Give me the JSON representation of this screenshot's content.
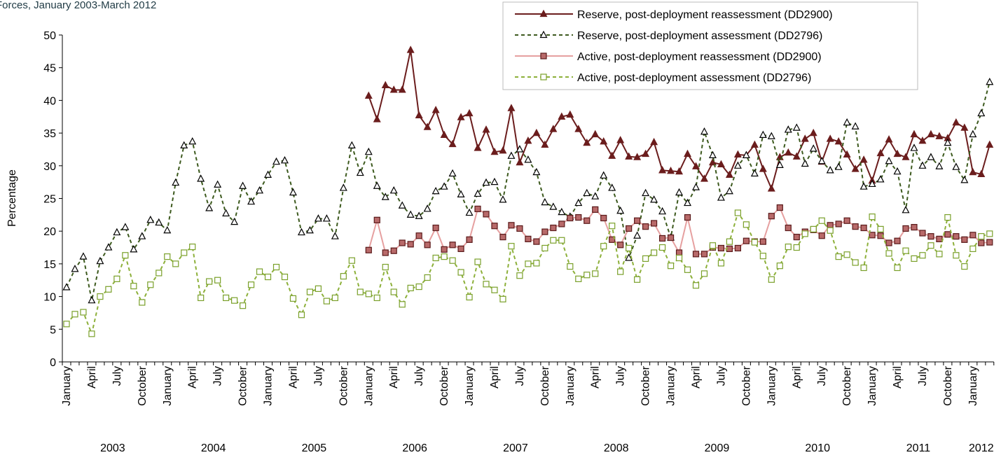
{
  "chart_data": {
    "type": "line",
    "title": "Forces, January 2003-March 2012",
    "y_label": "Percentage",
    "categories": [
      "January",
      null,
      null,
      "April",
      null,
      null,
      "July",
      null,
      null,
      "October",
      null,
      null,
      "January",
      null,
      null,
      "April",
      null,
      null,
      "July",
      null,
      null,
      "October",
      null,
      null,
      "January",
      null,
      null,
      "April",
      null,
      null,
      "July",
      null,
      null,
      "October",
      null,
      null,
      "January",
      null,
      null,
      "April",
      null,
      null,
      "July",
      null,
      null,
      "October",
      null,
      null,
      "January",
      null,
      null,
      "April",
      null,
      null,
      "July",
      null,
      null,
      "October",
      null,
      null,
      "January",
      null,
      null,
      "April",
      null,
      null,
      "July",
      null,
      null,
      "October",
      null,
      null,
      "January",
      null,
      null,
      "April",
      null,
      null,
      "July",
      null,
      null,
      "October",
      null,
      null,
      "January",
      null,
      null,
      "April",
      null,
      null,
      "July",
      null,
      null,
      "October",
      null,
      null,
      "January",
      null,
      null,
      "April",
      null,
      null,
      "July",
      null,
      null,
      "October",
      null,
      null,
      "January",
      null,
      null
    ],
    "years": [
      "2003",
      "2004",
      "2005",
      "2006",
      "2007",
      "2008",
      "2009",
      "2010",
      "2011",
      "2012"
    ],
    "ylim": [
      0,
      50
    ],
    "yticks": [
      0,
      5,
      10,
      15,
      20,
      25,
      30,
      35,
      40,
      45,
      50
    ],
    "series": [
      {
        "name": "Reserve, post-deployment reassessment (DD2900)",
        "color": "#6b1d1d",
        "dash": false,
        "marker": "triangle",
        "marker_fill": "#6b1d1d",
        "marker_stroke": "#6b1d1d",
        "values": [
          null,
          null,
          null,
          null,
          null,
          null,
          null,
          null,
          null,
          null,
          null,
          null,
          null,
          null,
          null,
          null,
          null,
          null,
          null,
          null,
          null,
          null,
          null,
          null,
          null,
          null,
          null,
          null,
          null,
          null,
          null,
          null,
          null,
          null,
          null,
          null,
          40.7,
          37.1,
          42.3,
          41.6,
          41.6,
          47.7,
          37.7,
          35.9,
          38.5,
          34.7,
          33.3,
          37.4,
          38.0,
          32.7,
          35.5,
          32.1,
          32.3,
          38.8,
          30.5,
          33.8,
          35.0,
          33.2,
          35.6,
          37.5,
          37.8,
          35.6,
          33.5,
          34.8,
          33.7,
          31.5,
          33.9,
          31.4,
          31.3,
          31.8,
          33.6,
          29.3,
          29.2,
          29.1,
          31.8,
          29.9,
          28.0,
          30.5,
          30.2,
          28.6,
          31.7,
          31.6,
          33.2,
          29.5,
          26.5,
          31.3,
          32.0,
          31.4,
          34.1,
          35.0,
          30.6,
          34.1,
          33.7,
          31.7,
          29.5,
          30.9,
          27.7,
          31.9,
          34.0,
          31.8,
          31.3,
          34.8,
          33.8,
          34.8,
          34.5,
          34.2,
          36.6,
          35.8,
          29.0,
          28.7,
          33.2
        ]
      },
      {
        "name": "Reserve, post-deployment assessment (DD2796)",
        "color": "#3d5a1e",
        "dash": true,
        "marker": "triangle",
        "marker_fill": "#ffffff",
        "marker_stroke": "#000000",
        "values": [
          11.4,
          14.2,
          16.1,
          9.4,
          15.4,
          17.5,
          19.8,
          20.6,
          17.2,
          19.2,
          21.7,
          21.3,
          20.1,
          27.4,
          33.1,
          33.7,
          28.0,
          23.5,
          27.1,
          22.7,
          21.4,
          26.9,
          24.5,
          26.2,
          28.6,
          30.6,
          30.8,
          25.9,
          19.8,
          20.1,
          21.9,
          21.9,
          19.2,
          26.6,
          33.1,
          28.9,
          32.1,
          26.9,
          25.2,
          26.2,
          23.9,
          22.5,
          22.3,
          23.4,
          26.1,
          26.8,
          28.8,
          25.6,
          22.8,
          25.7,
          27.4,
          27.5,
          24.8,
          31.5,
          32.5,
          30.9,
          29.0,
          24.4,
          23.7,
          22.9,
          22.2,
          24.3,
          25.8,
          25.3,
          28.5,
          26.6,
          23.1,
          15.9,
          19.3,
          25.8,
          24.8,
          23.0,
          19.0,
          25.9,
          24.3,
          26.7,
          35.2,
          31.6,
          25.1,
          26.1,
          30.0,
          31.6,
          28.8,
          34.7,
          34.5,
          30.1,
          35.5,
          35.8,
          30.3,
          32.6,
          30.7,
          29.3,
          29.8,
          36.6,
          36.0,
          26.8,
          27.2,
          27.9,
          30.7,
          29.1,
          23.2,
          32.7,
          30.0,
          31.3,
          29.9,
          33.5,
          29.8,
          27.8,
          34.8,
          38.0,
          42.8
        ]
      },
      {
        "name": "Active, post-deployment reassessment (DD2900)",
        "color": "#e6a0a0",
        "dash": false,
        "marker": "square",
        "marker_fill": "#b86a6a",
        "marker_stroke": "#5a1a1a",
        "values": [
          null,
          null,
          null,
          null,
          null,
          null,
          null,
          null,
          null,
          null,
          null,
          null,
          null,
          null,
          null,
          null,
          null,
          null,
          null,
          null,
          null,
          null,
          null,
          null,
          null,
          null,
          null,
          null,
          null,
          null,
          null,
          null,
          null,
          null,
          null,
          null,
          17.1,
          21.7,
          16.7,
          17.0,
          18.2,
          18.0,
          19.3,
          17.9,
          20.5,
          17.2,
          17.9,
          17.3,
          18.7,
          23.4,
          22.6,
          20.8,
          19.1,
          20.9,
          20.4,
          18.8,
          18.4,
          19.9,
          20.5,
          21.1,
          22.0,
          22.1,
          21.6,
          23.3,
          22.0,
          18.7,
          17.9,
          20.4,
          21.6,
          20.7,
          21.2,
          18.9,
          19.0,
          16.7,
          22.1,
          16.5,
          16.5,
          17.5,
          17.4,
          17.3,
          17.4,
          18.5,
          18.4,
          18.4,
          22.3,
          23.6,
          20.5,
          19.1,
          19.9,
          20.2,
          19.3,
          20.9,
          21.1,
          21.6,
          20.7,
          20.5,
          19.4,
          19.3,
          18.2,
          18.5,
          20.4,
          20.6,
          19.7,
          19.2,
          18.8,
          19.5,
          19.2,
          18.7,
          19.4,
          18.2,
          18.3
        ]
      },
      {
        "name": "Active, post-deployment assessment (DD2796)",
        "color": "#8db03a",
        "dash": true,
        "marker": "square",
        "marker_fill": "#ffffff",
        "marker_stroke": "#7aa02a",
        "values": [
          5.8,
          7.3,
          7.6,
          4.3,
          10.0,
          11.1,
          12.7,
          16.3,
          11.6,
          9.1,
          11.8,
          13.6,
          16.1,
          15.0,
          16.7,
          17.6,
          9.8,
          12.3,
          12.5,
          9.8,
          9.4,
          8.6,
          11.8,
          13.8,
          13.0,
          14.5,
          13.0,
          9.7,
          7.2,
          10.7,
          11.2,
          9.3,
          9.8,
          13.1,
          15.5,
          10.7,
          10.4,
          9.8,
          14.5,
          10.7,
          8.8,
          11.3,
          11.5,
          12.9,
          15.9,
          16.1,
          15.5,
          13.7,
          9.9,
          15.3,
          11.9,
          11.0,
          9.6,
          17.7,
          13.2,
          15.0,
          15.1,
          17.4,
          18.6,
          18.6,
          14.6,
          12.7,
          13.3,
          13.5,
          17.7,
          20.8,
          13.8,
          17.4,
          12.6,
          15.8,
          16.7,
          17.5,
          14.7,
          15.9,
          14.1,
          11.7,
          13.5,
          17.8,
          15.1,
          18.4,
          22.8,
          21.0,
          18.3,
          16.2,
          12.6,
          14.7,
          17.6,
          17.5,
          19.6,
          20.3,
          21.6,
          20.1,
          16.1,
          16.4,
          15.2,
          14.4,
          22.2,
          20.3,
          16.6,
          14.4,
          17.0,
          15.8,
          16.3,
          17.8,
          16.5,
          22.1,
          16.3,
          14.6,
          17.3,
          19.2,
          19.6
        ]
      }
    ]
  }
}
